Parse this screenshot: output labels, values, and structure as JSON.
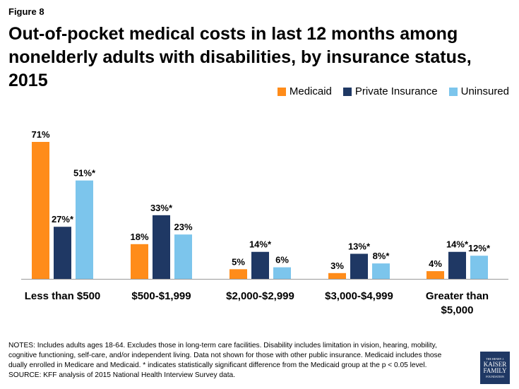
{
  "figure_label": "Figure 8",
  "title": "Out-of-pocket medical costs in last 12 months among nonelderly adults with disabilities, by insurance status, 2015",
  "colors": {
    "medicaid": "#ff8c1a",
    "private": "#1f3864",
    "uninsured": "#7cc5ec",
    "axis": "#999999"
  },
  "chart_data": {
    "type": "bar",
    "title": "Out-of-pocket medical costs in last 12 months among nonelderly adults with disabilities, by insurance status, 2015",
    "categories": [
      "Less than $500",
      "$500-$1,999",
      "$2,000-$2,999",
      "$3,000-$4,999",
      "Greater than $5,000"
    ],
    "series": [
      {
        "name": "Medicaid",
        "values": [
          71,
          18,
          5,
          3,
          4
        ],
        "labels": [
          "71%",
          "18%",
          "5%",
          "3%",
          "4%"
        ]
      },
      {
        "name": "Private Insurance",
        "values": [
          27,
          33,
          14,
          13,
          14
        ],
        "labels": [
          "27%*",
          "33%*",
          "14%*",
          "13%*",
          "14%*"
        ]
      },
      {
        "name": "Uninsured",
        "values": [
          51,
          23,
          6,
          8,
          12
        ],
        "labels": [
          "51%*",
          "23%",
          "6%",
          "8%*",
          "12%*"
        ]
      }
    ],
    "ylim": [
      0,
      71
    ],
    "legend_position": "top-right",
    "grid": false
  },
  "notes": "NOTES: Includes adults ages 18-64. Excludes those in long-term care facilities. Disability includes limitation in vision, hearing, mobility, cognitive functioning, self-care, and/or independent living. Data not shown for those with other public insurance. Medicaid includes those dually enrolled in Medicare and Medicaid. * indicates statistically significant difference from the Medicaid group at the p < 0.05 level. SOURCE: KFF analysis of 2015 National Health Interview Survey data.",
  "logo": {
    "line1": "THE HENRY J.",
    "line2": "KAISER",
    "line3": "FAMILY",
    "line4": "FOUNDATION"
  }
}
